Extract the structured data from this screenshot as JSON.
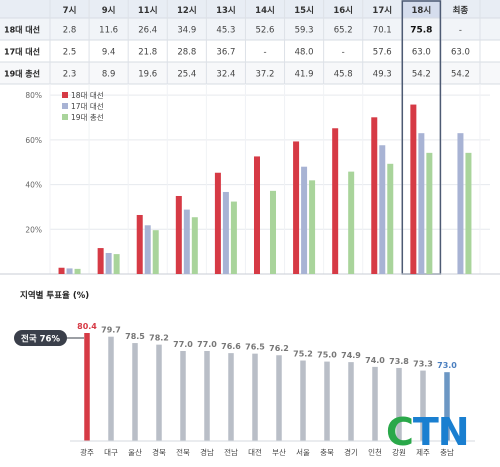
{
  "table": {
    "row_label_header": "",
    "hours": [
      "7시",
      "9시",
      "11시",
      "12시",
      "13시",
      "14시",
      "15시",
      "16시",
      "17시",
      "18시",
      "최종"
    ],
    "highlight_hour": "18시",
    "rows": [
      {
        "label": "18대 대선",
        "values": [
          "2.8",
          "11.6",
          "26.4",
          "34.9",
          "45.3",
          "52.6",
          "59.3",
          "65.2",
          "70.1",
          "75.8",
          "-"
        ]
      },
      {
        "label": "17대 대선",
        "values": [
          "2.5",
          "9.4",
          "21.8",
          "28.8",
          "36.7",
          "-",
          "48.0",
          "-",
          "57.6",
          "63.0",
          "63.0"
        ]
      },
      {
        "label": "19대 총선",
        "values": [
          "2.3",
          "8.9",
          "19.6",
          "25.4",
          "32.4",
          "37.2",
          "41.9",
          "45.8",
          "49.3",
          "54.2",
          "54.2"
        ]
      }
    ]
  },
  "chart_data": [
    {
      "type": "bar",
      "title": "",
      "categories": [
        "7시",
        "9시",
        "11시",
        "12시",
        "13시",
        "14시",
        "15시",
        "16시",
        "17시",
        "18시",
        "최종"
      ],
      "ylim": [
        0,
        85
      ],
      "yticks": [
        "20%",
        "40%",
        "60%",
        "80%"
      ],
      "ytick_values": [
        20,
        40,
        60,
        80
      ],
      "legend_position": "top-left",
      "grid": true,
      "colors": {
        "18대 대선": "#d63a45",
        "17대 대선": "#a8b3d4",
        "19대 총선": "#a9d49b"
      },
      "series": [
        {
          "name": "18대 대선",
          "values": [
            2.8,
            11.6,
            26.4,
            34.9,
            45.3,
            52.6,
            59.3,
            65.2,
            70.1,
            75.8,
            null
          ]
        },
        {
          "name": "17대 대선",
          "values": [
            2.5,
            9.4,
            21.8,
            28.8,
            36.7,
            null,
            48.0,
            null,
            57.6,
            63.0,
            63.0
          ]
        },
        {
          "name": "19대 총선",
          "values": [
            2.3,
            8.9,
            19.6,
            25.4,
            32.4,
            37.2,
            41.9,
            45.8,
            49.3,
            54.2,
            54.2
          ]
        }
      ]
    },
    {
      "type": "bar",
      "title": "지역별 투표율 (%)",
      "categories": [
        "광주",
        "대구",
        "울산",
        "경북",
        "전북",
        "경남",
        "전남",
        "대전",
        "부산",
        "서울",
        "충북",
        "경기",
        "인천",
        "강원",
        "제주",
        "충남"
      ],
      "values": [
        80.4,
        79.7,
        78.5,
        78.2,
        77.0,
        77.0,
        76.6,
        76.5,
        76.2,
        75.2,
        75.0,
        74.9,
        74.0,
        73.8,
        73.3,
        73.0
      ],
      "value_labels": [
        "80.4",
        "79.7",
        "78.5",
        "78.2",
        "77.0",
        "77.0",
        "76.6",
        "76.5",
        "76.2",
        "75.2",
        "75.0",
        "74.9",
        "74.0",
        "73.8",
        "73.3",
        "73.0"
      ],
      "ylim": [
        0,
        82
      ],
      "national_label": "전국 76%",
      "colors": {
        "highest": "#d63a45",
        "default": "#b9bec7",
        "lowest": "#6c97c4"
      }
    }
  ],
  "watermark": {
    "c": "C",
    "tn": "TN"
  }
}
